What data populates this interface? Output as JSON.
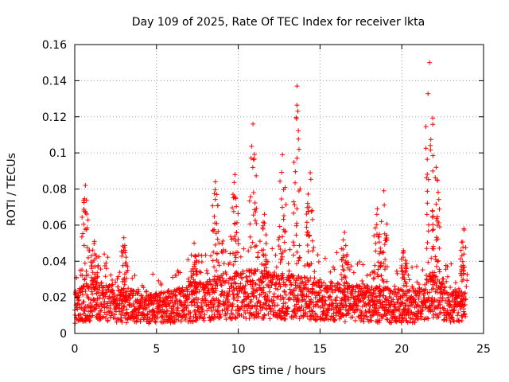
{
  "chart_data": {
    "type": "scatter",
    "title": "Day 109 of 2025, Rate Of TEC Index for receiver lkta",
    "xlabel": "GPS time / hours",
    "ylabel": "ROTI / TECUs",
    "xlim": [
      0,
      25
    ],
    "ylim": [
      0,
      0.16
    ],
    "x_ticks": [
      0,
      5,
      10,
      15,
      20,
      25
    ],
    "x_tick_labels": [
      "0",
      "5",
      "10",
      "15",
      "20",
      "25"
    ],
    "y_ticks": [
      0,
      0.02,
      0.04,
      0.06,
      0.08,
      0.1,
      0.12,
      0.14,
      0.16
    ],
    "y_tick_labels": [
      "0",
      "0.02",
      "0.04",
      "0.06",
      "0.08",
      "0.1",
      "0.12",
      "0.14",
      "0.16"
    ],
    "grid": true,
    "marker": "+",
    "marker_color": "#ff0000",
    "series": [
      {
        "name": "ROTI",
        "x_range": [
          0,
          23.9
        ],
        "baseline_envelope": [
          [
            0,
            0.016
          ],
          [
            1,
            0.02
          ],
          [
            3,
            0.017
          ],
          [
            5,
            0.015
          ],
          [
            7,
            0.018
          ],
          [
            9,
            0.022
          ],
          [
            11,
            0.024
          ],
          [
            13,
            0.022
          ],
          [
            15,
            0.02
          ],
          [
            17,
            0.018
          ],
          [
            19,
            0.017
          ],
          [
            21,
            0.016
          ],
          [
            22,
            0.025
          ],
          [
            23,
            0.017
          ],
          [
            24,
            0.015
          ]
        ],
        "peaks": [
          {
            "x": 0.65,
            "y": 0.082
          },
          {
            "x": 1.2,
            "y": 0.051
          },
          {
            "x": 3.0,
            "y": 0.053
          },
          {
            "x": 7.3,
            "y": 0.05
          },
          {
            "x": 8.6,
            "y": 0.084
          },
          {
            "x": 9.8,
            "y": 0.088
          },
          {
            "x": 10.9,
            "y": 0.116
          },
          {
            "x": 11.6,
            "y": 0.066
          },
          {
            "x": 12.7,
            "y": 0.099
          },
          {
            "x": 13.6,
            "y": 0.137
          },
          {
            "x": 14.4,
            "y": 0.089
          },
          {
            "x": 16.5,
            "y": 0.056
          },
          {
            "x": 18.5,
            "y": 0.069
          },
          {
            "x": 18.9,
            "y": 0.079
          },
          {
            "x": 20.1,
            "y": 0.046
          },
          {
            "x": 21.7,
            "y": 0.15
          },
          {
            "x": 22.1,
            "y": 0.092
          },
          {
            "x": 23.8,
            "y": 0.058
          }
        ]
      }
    ]
  }
}
